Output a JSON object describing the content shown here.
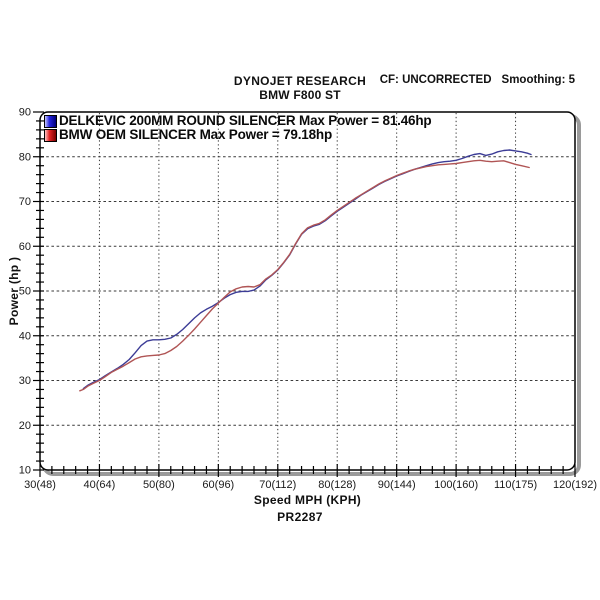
{
  "header": {
    "title": "DYNOJET RESEARCH",
    "subtitle": "BMW F800 ST",
    "cf_label": "CF: UNCORRECTED",
    "smoothing_label": "Smoothing: 5"
  },
  "legend": [
    {
      "label": "DELKEVIC 200MM ROUND SILENCER Max Power = 81.46hp",
      "swatch_colors": [
        "#c8c8ff",
        "#2424e0",
        "#000078"
      ]
    },
    {
      "label": "BMW OEM SILENCER Max Power = 79.18hp",
      "swatch_colors": [
        "#ffc8c8",
        "#e42424",
        "#780000"
      ]
    }
  ],
  "axes": {
    "x_title": "Speed MPH (KPH)",
    "y_title": "Power (hp )",
    "x_tick_labels": [
      "30(48)",
      "40(64)",
      "50(80)",
      "60(96)",
      "70(112)",
      "80(128)",
      "90(144)",
      "100(160)",
      "110(175)",
      "120(192)"
    ],
    "y_tick_labels": [
      "90",
      "80",
      "70",
      "60",
      "50",
      "40",
      "30",
      "20",
      "10"
    ]
  },
  "footer": {
    "report_number": "PR2287"
  },
  "chart_data": {
    "type": "line",
    "title": "DYNOJET RESEARCH BMW F800 ST",
    "xlabel": "Speed MPH (KPH)",
    "ylabel": "Power (hp )",
    "xlim": [
      30,
      120
    ],
    "ylim": [
      10,
      90
    ],
    "x_major_ticks": [
      30,
      40,
      50,
      60,
      70,
      80,
      90,
      100,
      110,
      120
    ],
    "y_major_ticks": [
      10,
      20,
      30,
      40,
      50,
      60,
      70,
      80,
      90
    ],
    "x_minor_step": 2,
    "y_minor_step": 2,
    "grid": {
      "vertical": "dotted",
      "horizontal": "dashed",
      "color": "#3a3a3a"
    },
    "legend_position": "top-left-inside",
    "series": [
      {
        "name": "DELKEVIC 200MM ROUND SILENCER",
        "max_power_hp": 81.46,
        "color": "#3c3c96",
        "points": [
          [
            37.3,
            28.2
          ],
          [
            38,
            28.9
          ],
          [
            39,
            29.6
          ],
          [
            40,
            30.2
          ],
          [
            41,
            31.1
          ],
          [
            42,
            31.9
          ],
          [
            43,
            32.7
          ],
          [
            44,
            33.6
          ],
          [
            45,
            34.7
          ],
          [
            46,
            36.2
          ],
          [
            47,
            37.8
          ],
          [
            48,
            38.8
          ],
          [
            49,
            39.1
          ],
          [
            50,
            39.1
          ],
          [
            51,
            39.2
          ],
          [
            52,
            39.5
          ],
          [
            53,
            40.3
          ],
          [
            54,
            41.4
          ],
          [
            55,
            42.7
          ],
          [
            56,
            44.0
          ],
          [
            57,
            45.1
          ],
          [
            58,
            45.9
          ],
          [
            59,
            46.6
          ],
          [
            60,
            47.4
          ],
          [
            61,
            48.4
          ],
          [
            62,
            49.2
          ],
          [
            63,
            49.7
          ],
          [
            64,
            49.9
          ],
          [
            65,
            49.9
          ],
          [
            66,
            50.2
          ],
          [
            67,
            51.1
          ],
          [
            68,
            52.5
          ],
          [
            69,
            53.5
          ],
          [
            70,
            54.7
          ],
          [
            71,
            56.3
          ],
          [
            72,
            58.1
          ],
          [
            73,
            60.5
          ],
          [
            74,
            62.7
          ],
          [
            75,
            63.9
          ],
          [
            76,
            64.5
          ],
          [
            77,
            64.9
          ],
          [
            78,
            65.7
          ],
          [
            79,
            66.8
          ],
          [
            80,
            67.8
          ],
          [
            81,
            68.7
          ],
          [
            82,
            69.6
          ],
          [
            83,
            70.5
          ],
          [
            84,
            71.4
          ],
          [
            85,
            72.2
          ],
          [
            86,
            73.0
          ],
          [
            87,
            73.8
          ],
          [
            88,
            74.5
          ],
          [
            89,
            75.1
          ],
          [
            90,
            75.7
          ],
          [
            91,
            76.2
          ],
          [
            92,
            76.7
          ],
          [
            93,
            77.2
          ],
          [
            94,
            77.6
          ],
          [
            95,
            78.0
          ],
          [
            96,
            78.4
          ],
          [
            97,
            78.7
          ],
          [
            98,
            78.9
          ],
          [
            99,
            79.0
          ],
          [
            100,
            79.2
          ],
          [
            101,
            79.6
          ],
          [
            102,
            80.1
          ],
          [
            103,
            80.5
          ],
          [
            104,
            80.7
          ],
          [
            105,
            80.3
          ],
          [
            106,
            80.6
          ],
          [
            107,
            81.1
          ],
          [
            108,
            81.4
          ],
          [
            109,
            81.5
          ],
          [
            110,
            81.3
          ],
          [
            111,
            81.1
          ],
          [
            112,
            80.8
          ],
          [
            112.6,
            80.5
          ]
        ]
      },
      {
        "name": "BMW OEM SILENCER",
        "max_power_hp": 79.18,
        "color": "#b05555",
        "points": [
          [
            36.7,
            27.7
          ],
          [
            37.3,
            28.0
          ],
          [
            38,
            28.7
          ],
          [
            39,
            29.4
          ],
          [
            40,
            30.0
          ],
          [
            41,
            30.9
          ],
          [
            42,
            31.8
          ],
          [
            43,
            32.5
          ],
          [
            44,
            33.2
          ],
          [
            45,
            34.0
          ],
          [
            46,
            34.8
          ],
          [
            47,
            35.3
          ],
          [
            48,
            35.5
          ],
          [
            49,
            35.6
          ],
          [
            50,
            35.7
          ],
          [
            51,
            36.0
          ],
          [
            52,
            36.7
          ],
          [
            53,
            37.6
          ],
          [
            54,
            38.8
          ],
          [
            55,
            40.1
          ],
          [
            56,
            41.5
          ],
          [
            57,
            43.0
          ],
          [
            58,
            44.5
          ],
          [
            59,
            46.0
          ],
          [
            60,
            47.3
          ],
          [
            61,
            48.6
          ],
          [
            62,
            49.8
          ],
          [
            63,
            50.5
          ],
          [
            64,
            50.9
          ],
          [
            65,
            51.0
          ],
          [
            66,
            50.9
          ],
          [
            67,
            51.4
          ],
          [
            68,
            52.7
          ],
          [
            69,
            53.6
          ],
          [
            70,
            54.8
          ],
          [
            71,
            56.4
          ],
          [
            72,
            58.2
          ],
          [
            73,
            60.6
          ],
          [
            74,
            62.8
          ],
          [
            75,
            64.1
          ],
          [
            76,
            64.7
          ],
          [
            77,
            65.1
          ],
          [
            78,
            65.9
          ],
          [
            79,
            67.0
          ],
          [
            80,
            68.0
          ],
          [
            81,
            68.9
          ],
          [
            82,
            69.8
          ],
          [
            83,
            70.7
          ],
          [
            84,
            71.5
          ],
          [
            85,
            72.3
          ],
          [
            86,
            73.1
          ],
          [
            87,
            73.9
          ],
          [
            88,
            74.6
          ],
          [
            89,
            75.2
          ],
          [
            90,
            75.8
          ],
          [
            91,
            76.3
          ],
          [
            92,
            76.8
          ],
          [
            93,
            77.2
          ],
          [
            94,
            77.5
          ],
          [
            95,
            77.8
          ],
          [
            96,
            78.0
          ],
          [
            97,
            78.2
          ],
          [
            98,
            78.3
          ],
          [
            99,
            78.4
          ],
          [
            100,
            78.5
          ],
          [
            101,
            78.7
          ],
          [
            102,
            78.9
          ],
          [
            103,
            79.1
          ],
          [
            104,
            79.2
          ],
          [
            105,
            79.0
          ],
          [
            106,
            78.9
          ],
          [
            107,
            79.0
          ],
          [
            108,
            79.1
          ],
          [
            109,
            78.7
          ],
          [
            110,
            78.3
          ],
          [
            111,
            78.0
          ],
          [
            112.3,
            77.6
          ]
        ]
      }
    ]
  }
}
